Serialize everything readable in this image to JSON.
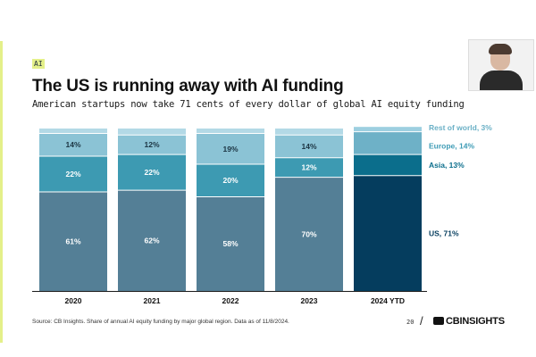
{
  "header": {
    "tag": "AI",
    "title": "The US is running away with AI funding",
    "subtitle": "American startups now take 71 cents of every dollar of global AI equity funding"
  },
  "footer": {
    "source": "Source: CB Insights. Share of annual AI equity funding by major global region. Data as of 11/8/2024.",
    "page_number": "20",
    "logo_text": "CBINSIGHTS"
  },
  "colors": {
    "accent": "#e4f08a",
    "us": "#547f96",
    "asia": "#3d9ab2",
    "europe": "#8bc3d5",
    "rest": "#b3d9e6",
    "us_highlight": "#053d5e",
    "asia_highlight": "#0b6e8c",
    "europe_highlight": "#6eb1c7",
    "rest_highlight": "#9dcfe0"
  },
  "chart_data": {
    "type": "bar",
    "stacked": true,
    "categories": [
      "2020",
      "2021",
      "2022",
      "2023",
      "2024 YTD"
    ],
    "highlight_category": "2024 YTD",
    "series": [
      {
        "name": "US",
        "values": [
          61,
          62,
          58,
          70,
          71
        ],
        "labels": [
          "61%",
          "62%",
          "58%",
          "70%",
          ""
        ]
      },
      {
        "name": "Asia",
        "values": [
          22,
          22,
          20,
          12,
          13
        ],
        "labels": [
          "22%",
          "22%",
          "20%",
          "12%",
          ""
        ]
      },
      {
        "name": "Europe",
        "values": [
          14,
          12,
          19,
          14,
          14
        ],
        "labels": [
          "14%",
          "12%",
          "19%",
          "14%",
          ""
        ]
      },
      {
        "name": "Rest of world",
        "values": [
          3,
          4,
          3,
          4,
          3
        ],
        "labels": [
          "",
          "",
          "",
          "",
          ""
        ]
      }
    ],
    "legend": [
      {
        "series": "Rest of world",
        "label": "Rest of world, 3%"
      },
      {
        "series": "Europe",
        "label": "Europe, 14%"
      },
      {
        "series": "Asia",
        "label": "Asia, 13%"
      },
      {
        "series": "US",
        "label": "US, 71%"
      }
    ],
    "legend_placement": "right",
    "ylim": [
      0,
      100
    ],
    "grid": false
  }
}
